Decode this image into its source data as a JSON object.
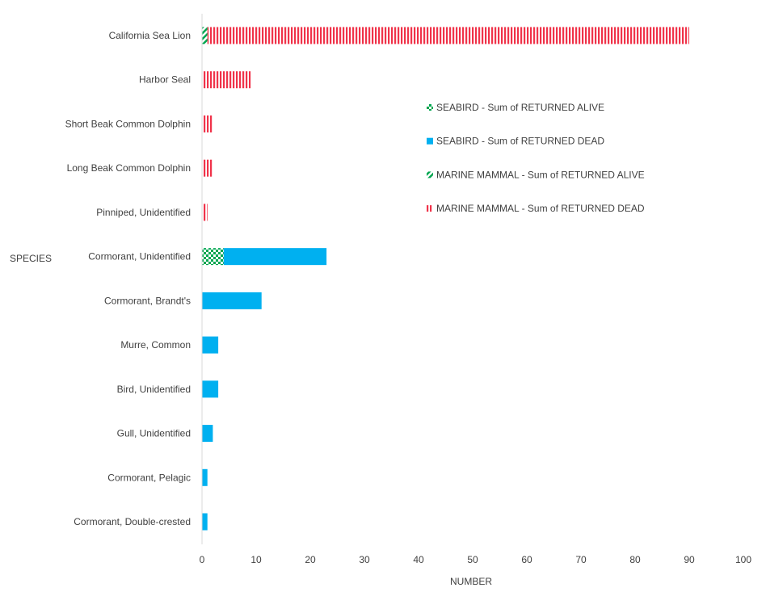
{
  "chart_data": {
    "type": "bar",
    "orientation": "horizontal",
    "stacked": true,
    "ylabel": "SPECIES",
    "xlabel": "NUMBER",
    "xlim": [
      0,
      100
    ],
    "xticks": [
      0,
      10,
      20,
      30,
      40,
      50,
      60,
      70,
      80,
      90,
      100
    ],
    "grid": false,
    "legend_position": "right",
    "categories": [
      "California Sea Lion",
      "Harbor Seal",
      "Short Beak Common Dolphin",
      "Long Beak Common Dolphin",
      "Pinniped, Unidentified",
      "Cormorant, Unidentified",
      "Cormorant, Brandt's",
      "Murre, Common",
      "Bird, Unidentified",
      "Gull, Unidentified",
      "Cormorant, Pelagic",
      "Cormorant, Double-crested"
    ],
    "series": [
      {
        "name": "SEABIRD - Sum of RETURNED ALIVE",
        "color": "#00A650",
        "pattern": "checker",
        "values": [
          0,
          0,
          0,
          0,
          0,
          4,
          0,
          0,
          0,
          0,
          0,
          0
        ]
      },
      {
        "name": "SEABIRD - Sum of RETURNED DEAD",
        "color": "#00B0F0",
        "pattern": "solid",
        "values": [
          0,
          0,
          0,
          0,
          0,
          19,
          11,
          3,
          3,
          2,
          1,
          1
        ]
      },
      {
        "name": "MARINE MAMMAL - Sum of RETURNED ALIVE",
        "color": "#00A650",
        "pattern": "diagonal",
        "values": [
          1,
          0,
          0,
          0,
          0,
          0,
          0,
          0,
          0,
          0,
          0,
          0
        ]
      },
      {
        "name": "MARINE MAMMAL - Sum of RETURNED DEAD",
        "color": "#F0334A",
        "pattern": "vertical",
        "values": [
          89,
          9,
          2,
          2,
          1,
          0,
          0,
          0,
          0,
          0,
          0,
          0
        ]
      }
    ]
  }
}
